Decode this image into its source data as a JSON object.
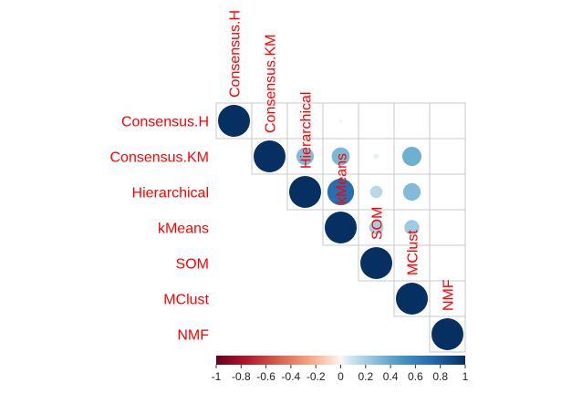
{
  "chart_data": {
    "type": "heatmap",
    "subtype": "corrplot-upper-circle",
    "variables": [
      "Consensus.H",
      "Consensus.KM",
      "Hierarchical",
      "kMeans",
      "SOM",
      "MClust",
      "NMF"
    ],
    "matrix": [
      [
        1.0,
        0.0,
        0.02,
        0.01,
        0.0,
        0.0,
        0.0
      ],
      [
        0.0,
        1.0,
        0.3,
        0.32,
        0.03,
        0.36,
        0.0
      ],
      [
        0.02,
        0.3,
        1.0,
        0.7,
        0.15,
        0.3,
        0.0
      ],
      [
        0.01,
        0.32,
        0.7,
        1.0,
        0.2,
        0.22,
        0.0
      ],
      [
        0.0,
        0.03,
        0.15,
        0.2,
        1.0,
        0.06,
        0.0
      ],
      [
        0.0,
        0.36,
        0.3,
        0.22,
        0.06,
        1.0,
        0.02
      ],
      [
        0.0,
        0.0,
        0.0,
        0.0,
        0.0,
        0.02,
        1.0
      ]
    ],
    "legend": {
      "range": [
        -1,
        1
      ],
      "ticks": [
        "-1",
        "-0.8",
        "-0.6",
        "-0.4",
        "-0.2",
        "0",
        "0.2",
        "0.4",
        "0.6",
        "0.8",
        "1"
      ]
    },
    "label_color": "#FF0000",
    "grid_color": "#C8C8C8",
    "colors": {
      "negative_end": "#67001F",
      "mid": "#F7F7F7",
      "positive_end": "#053061"
    }
  }
}
